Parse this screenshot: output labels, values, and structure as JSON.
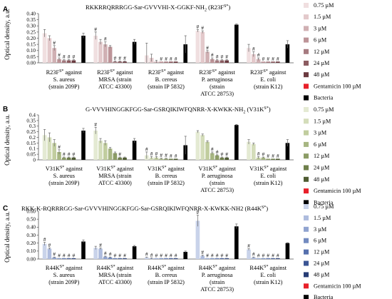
{
  "chart_data": [
    {
      "type": "bar",
      "panel_label": "A",
      "title": "RKKRRQRRRGG-Sar-GVVVHI-X-GGKF-NH",
      "title_sub": "2",
      "title_tail": " (R23F",
      "title_sup": "S*",
      "title_end": ")",
      "ylabel": "Optical density, a.u.",
      "ylim": [
        0,
        0.4
      ],
      "yticks": [
        "0.00",
        "0.05",
        "0.10",
        "0.15",
        "0.20",
        "0.25",
        "0.30",
        "0.35",
        "0.40"
      ],
      "categories": [
        {
          "pep": "R23F",
          "sup": "S*",
          "l1": " against",
          "l2": "S. aureus",
          "l3": "(strain 209P)",
          "l4": ""
        },
        {
          "pep": "R23F",
          "sup": "S*",
          "l1": " against",
          "l2": "MRSA (strain",
          "l3": "ATCC 43300)",
          "l4": ""
        },
        {
          "pep": "R23F",
          "sup": "S*",
          "l1": " against",
          "l2": "B. cereus",
          "l3": "(strain IP 5832)",
          "l4": ""
        },
        {
          "pep": "R23F",
          "sup": "S*",
          "l1": " against",
          "l2": "P. aeruginosa",
          "l3": "(strain",
          "l4": "ATCC 28753)"
        },
        {
          "pep": "R23F",
          "sup": "S*",
          "l1": " against",
          "l2": "E. coli",
          "l3": "(strain K12)",
          "l4": ""
        }
      ],
      "legend": [
        "0.75 µM",
        "1.5 µM",
        "3 µM",
        "6 µM",
        "12 µM",
        "24 µM",
        "48 µM",
        "Gentamicin 100 µM",
        "Bacteria"
      ],
      "colors": [
        "#f0dfe0",
        "#e3c9cb",
        "#d0b0b3",
        "#bd9498",
        "#a67b80",
        "#8c5c61",
        "#6b3a40",
        "#e8202a",
        "#000000"
      ],
      "series": [
        {
          "name": "0.75 µM",
          "values": [
            0.24,
            0.22,
            0.06,
            0.26,
            0.12
          ],
          "errors": [
            0.03,
            0.03,
            0.1,
            0.01,
            0.03
          ]
        },
        {
          "name": "1.5 µM",
          "values": [
            0.2,
            0.17,
            0.04,
            0.25,
            0.07
          ],
          "errors": [
            0.02,
            0.02,
            0.03,
            0.01,
            0.02
          ]
        },
        {
          "name": "3 µM",
          "values": [
            0.12,
            0.15,
            0.01,
            0.09,
            0.03
          ],
          "errors": [
            0.02,
            0.02,
            0.01,
            0.01,
            0.01
          ]
        },
        {
          "name": "6 µM",
          "values": [
            0.03,
            0.13,
            0.01,
            0.03,
            0.01
          ],
          "errors": [
            0.01,
            0.01,
            0.0,
            0.01,
            0.0
          ]
        },
        {
          "name": "12 µM",
          "values": [
            0.02,
            0.01,
            0.01,
            0.02,
            0.01
          ],
          "errors": [
            0.005,
            0.005,
            0.0,
            0.005,
            0.0
          ]
        },
        {
          "name": "24 µM",
          "values": [
            0.02,
            0.01,
            0.01,
            0.02,
            0.01
          ],
          "errors": [
            0.005,
            0.005,
            0.0,
            0.005,
            0.0
          ]
        },
        {
          "name": "48 µM",
          "values": [
            0.02,
            0.01,
            0.01,
            0.02,
            0.01
          ],
          "errors": [
            0.005,
            0.005,
            0.0,
            0.005,
            0.0
          ]
        },
        {
          "name": "Gentamicin 100 µM",
          "values": [
            0.0,
            0.0,
            0.0,
            0.0,
            0.0
          ],
          "errors": [
            0,
            0,
            0,
            0,
            0
          ]
        },
        {
          "name": "Bacteria",
          "values": [
            0.22,
            0.17,
            0.15,
            0.31,
            0.15
          ],
          "errors": [
            0.02,
            0.02,
            0.07,
            0.005,
            0.03
          ]
        }
      ],
      "significance": [
        [
          false,
          false,
          true,
          true,
          true,
          true,
          true,
          false,
          false
        ],
        [
          true,
          false,
          true,
          false,
          true,
          true,
          true,
          false,
          false
        ],
        [
          false,
          false,
          false,
          true,
          true,
          true,
          true,
          false,
          false
        ],
        [
          true,
          true,
          true,
          true,
          true,
          true,
          true,
          false,
          false
        ],
        [
          false,
          true,
          true,
          true,
          true,
          true,
          true,
          false,
          false
        ]
      ],
      "sig_mark": "#"
    },
    {
      "type": "bar",
      "panel_label": "B",
      "title": "G-VVVHINGGKFGG-Sar-GSRQIKIWFQNRR-X-KWKK-NH",
      "title_sub": "2",
      "title_tail": "  (V31K",
      "title_sup": "S*",
      "title_end": ")",
      "ylabel": "Optical density, a.u.",
      "ylim": [
        0,
        0.4
      ],
      "yticks": [
        "0",
        "0.05",
        "0.1",
        "0.15",
        "0.2",
        "0.25",
        "0.3",
        "0.35",
        "0.4"
      ],
      "categories": [
        {
          "pep": "V31K",
          "sup": "S*",
          "l1": " against",
          "l2": "S. aureus",
          "l3": "(strain 209P)",
          "l4": ""
        },
        {
          "pep": "V31K",
          "sup": "S*",
          "l1": " against",
          "l2": "MRSA (strain",
          "l3": "ATCC 43300)",
          "l4": ""
        },
        {
          "pep": "V31K",
          "sup": "S*",
          "l1": " against",
          "l2": "B. cereus",
          "l3": "(strain IP 5832)",
          "l4": ""
        },
        {
          "pep": "V31K",
          "sup": "S*",
          "l1": " against",
          "l2": "P. aeruginosa",
          "l3": "(strain",
          "l4": "ATCC 28753)"
        },
        {
          "pep": "V31K",
          "sup": "S*",
          "l1": " against",
          "l2": "E. coli",
          "l3": "(strain K12)",
          "l4": ""
        }
      ],
      "legend": [
        "0.75 µM",
        "1.5 µM",
        "3 µM",
        "6 µM",
        "12 µM",
        "24 µM",
        "48 µM",
        "Gentamicin 100 µM",
        "Bacteria"
      ],
      "colors": [
        "#e4ead3",
        "#d4ddba",
        "#c1cd9f",
        "#a7b682",
        "#8c9c66",
        "#6f7f4b",
        "#4f5c32",
        "#e8202a",
        "#000000"
      ],
      "series": [
        {
          "name": "0.75 µM",
          "values": [
            0.22,
            0.26,
            0.04,
            0.25,
            0.16
          ],
          "errors": [
            0.05,
            0.03,
            0.03,
            0.01,
            0.02
          ]
        },
        {
          "name": "1.5 µM",
          "values": [
            0.2,
            0.17,
            0.02,
            0.22,
            0.14
          ],
          "errors": [
            0.04,
            0.02,
            0.01,
            0.01,
            0.01
          ]
        },
        {
          "name": "3 µM",
          "values": [
            0.15,
            0.15,
            0.02,
            0.16,
            0.02
          ],
          "errors": [
            0.03,
            0.02,
            0.01,
            0.01,
            0.01
          ]
        },
        {
          "name": "6 µM",
          "values": [
            0.07,
            0.1,
            0.01,
            0.06,
            0.02
          ],
          "errors": [
            0.02,
            0.01,
            0.005,
            0.01,
            0.005
          ]
        },
        {
          "name": "12 µM",
          "values": [
            0.02,
            0.06,
            0.01,
            0.04,
            0.01
          ],
          "errors": [
            0.005,
            0.01,
            0.005,
            0.005,
            0.0
          ]
        },
        {
          "name": "24 µM",
          "values": [
            0.02,
            0.02,
            0.01,
            0.02,
            0.01
          ],
          "errors": [
            0.005,
            0.005,
            0.0,
            0.005,
            0.0
          ]
        },
        {
          "name": "48 µM",
          "values": [
            0.02,
            0.02,
            0.01,
            0.02,
            0.01
          ],
          "errors": [
            0.005,
            0.005,
            0.0,
            0.005,
            0.0
          ]
        },
        {
          "name": "Gentamicin 100 µM",
          "values": [
            0.0,
            0.0,
            0.0,
            0.0,
            0.0
          ],
          "errors": [
            0,
            0,
            0,
            0,
            0
          ]
        },
        {
          "name": "Bacteria",
          "values": [
            0.26,
            0.17,
            0.13,
            0.31,
            0.15
          ],
          "errors": [
            0.02,
            0.02,
            0.08,
            0.005,
            0.03
          ]
        }
      ],
      "significance": [
        [
          false,
          false,
          false,
          true,
          true,
          true,
          true,
          false,
          false
        ],
        [
          true,
          false,
          false,
          false,
          false,
          true,
          false,
          false,
          false
        ],
        [
          true,
          true,
          true,
          true,
          true,
          true,
          true,
          false,
          false
        ],
        [
          false,
          false,
          false,
          true,
          true,
          true,
          true,
          false,
          false
        ],
        [
          false,
          false,
          true,
          true,
          true,
          true,
          true,
          false,
          false
        ]
      ],
      "sig_mark": "#"
    },
    {
      "type": "bar",
      "panel_label": "C",
      "title": "RKK-K-RQRRRGG-Sar-GVVVHINGGKFGG-Sar-GSRQIKIWFQNRR-X-KWKK-NH2",
      "title_sub": "",
      "title_tail": " (R44K",
      "title_sup": "S*",
      "title_end": ")",
      "ylabel": "Optical density, a.u.",
      "ylim": [
        0,
        0.6
      ],
      "yticks": [
        "0.00",
        "0.10",
        "0.20",
        "0.30",
        "0.40",
        "0.50",
        "0.60"
      ],
      "categories": [
        {
          "pep": "R44K",
          "sup": "S*",
          "l1": " against",
          "l2": "S. aureus",
          "l3": "(strain 209P)",
          "l4": ""
        },
        {
          "pep": "R44K",
          "sup": "S*",
          "l1": " against",
          "l2": "MRSA (strain",
          "l3": "ATCC 43300)",
          "l4": ""
        },
        {
          "pep": "R44K",
          "sup": "S*",
          "l1": " against",
          "l2": "B. cereus",
          "l3": "(strain IP 5832)",
          "l4": ""
        },
        {
          "pep": "R44K",
          "sup": "S*",
          "l1": " against",
          "l2": "P. aeruginosa",
          "l3": "(strain",
          "l4": "ATCC 28753)"
        },
        {
          "pep": "R44K",
          "sup": "S*",
          "l1": " against",
          "l2": "E. coli",
          "l3": "(strain K12)",
          "l4": ""
        }
      ],
      "legend": [
        "0.75 µM",
        "1.5 µM",
        "3 µM",
        "6 µM",
        "12 µM",
        "24 µM",
        "48 µM",
        "Gentamicin 100 µM",
        "Bacteria"
      ],
      "colors": [
        "#c9d3ea",
        "#aebcde",
        "#91a4d0",
        "#738bc0",
        "#5670ad",
        "#3b5594",
        "#263c75",
        "#e8202a",
        "#000000"
      ],
      "series": [
        {
          "name": "0.75 µM",
          "values": [
            0.19,
            0.14,
            0.02,
            0.48,
            0.12
          ],
          "errors": [
            0.02,
            0.02,
            0.005,
            0.07,
            0.01
          ]
        },
        {
          "name": "1.5 µM",
          "values": [
            0.13,
            0.13,
            0.01,
            0.04,
            0.02
          ],
          "errors": [
            0.01,
            0.01,
            0.005,
            0.01,
            0.005
          ]
        },
        {
          "name": "3 µM",
          "values": [
            0.02,
            0.03,
            0.01,
            0.01,
            0.01
          ],
          "errors": [
            0.005,
            0.005,
            0.0,
            0.0,
            0.0
          ]
        },
        {
          "name": "6 µM",
          "values": [
            0.01,
            0.02,
            0.01,
            0.01,
            0.01
          ],
          "errors": [
            0.0,
            0.005,
            0.0,
            0.0,
            0.0
          ]
        },
        {
          "name": "12 µM",
          "values": [
            0.01,
            0.01,
            0.01,
            0.01,
            0.01
          ],
          "errors": [
            0,
            0,
            0,
            0,
            0
          ]
        },
        {
          "name": "24 µM",
          "values": [
            0.01,
            0.01,
            0.01,
            0.01,
            0.01
          ],
          "errors": [
            0,
            0,
            0,
            0,
            0
          ]
        },
        {
          "name": "48 µM",
          "values": [
            0.01,
            0.01,
            0.01,
            0.01,
            0.01
          ],
          "errors": [
            0,
            0,
            0,
            0,
            0
          ]
        },
        {
          "name": "Gentamicin 100 µM",
          "values": [
            0.0,
            0.0,
            0.0,
            0.0,
            0.0
          ],
          "errors": [
            0,
            0,
            0,
            0,
            0
          ]
        },
        {
          "name": "Bacteria",
          "values": [
            0.22,
            0.16,
            0.09,
            0.41,
            0.2
          ],
          "errors": [
            0.02,
            0.01,
            0.01,
            0.03,
            0.005
          ]
        }
      ],
      "significance": [
        [
          true,
          true,
          true,
          true,
          true,
          true,
          true,
          false,
          false
        ],
        [
          false,
          true,
          true,
          true,
          true,
          true,
          true,
          false,
          false
        ],
        [
          true,
          true,
          true,
          true,
          true,
          true,
          true,
          false,
          false
        ],
        [
          true,
          true,
          true,
          true,
          true,
          true,
          true,
          false,
          false
        ],
        [
          true,
          true,
          true,
          true,
          true,
          true,
          true,
          false,
          false
        ]
      ],
      "sig_mark": "#"
    }
  ]
}
